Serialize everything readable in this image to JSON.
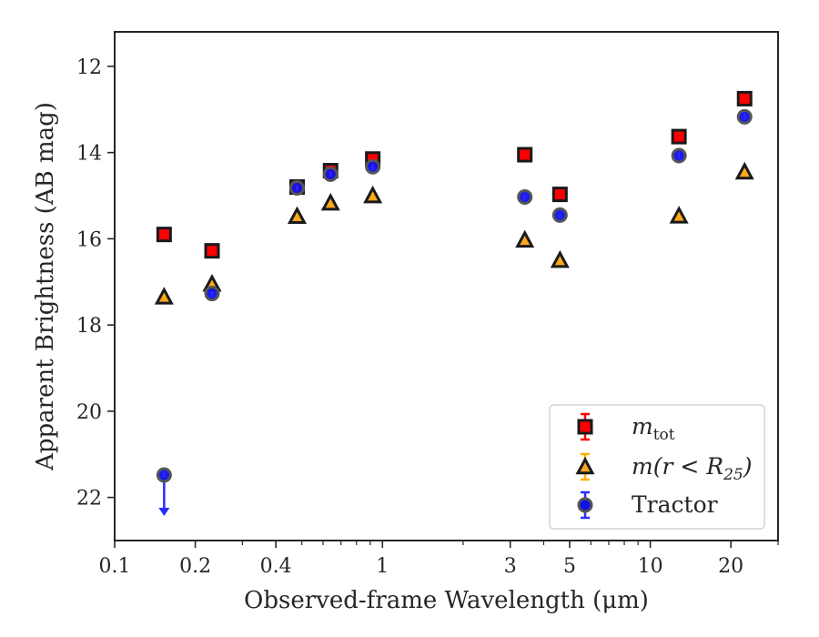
{
  "chart_data": {
    "type": "scatter",
    "title": "",
    "xlabel": "Observed-frame Wavelength (μm)",
    "ylabel": "Apparent Brightness (AB mag)",
    "xscale": "log",
    "xlim": [
      0.1,
      30
    ],
    "ylim": [
      23,
      11.2
    ],
    "y_inverted": true,
    "grid": false,
    "legend_position": "lower-right",
    "x_ticks": [
      {
        "value": 0.1,
        "label": "0.1"
      },
      {
        "value": 0.2,
        "label": "0.2"
      },
      {
        "value": 0.4,
        "label": "0.4"
      },
      {
        "value": 1,
        "label": "1"
      },
      {
        "value": 3,
        "label": "3"
      },
      {
        "value": 5,
        "label": "5"
      },
      {
        "value": 10,
        "label": "10"
      },
      {
        "value": 20,
        "label": "20"
      }
    ],
    "x_minor_ticks": [
      0.3,
      0.5,
      0.6,
      0.7,
      0.8,
      0.9,
      2,
      4,
      6,
      7,
      8,
      9,
      30
    ],
    "y_ticks": [
      {
        "value": 12,
        "label": "12"
      },
      {
        "value": 14,
        "label": "14"
      },
      {
        "value": 16,
        "label": "16"
      },
      {
        "value": 18,
        "label": "18"
      },
      {
        "value": 20,
        "label": "20"
      },
      {
        "value": 22,
        "label": "22"
      }
    ],
    "series": [
      {
        "name": "m_tot",
        "legend_main": "m",
        "legend_sub": "tot",
        "marker": "square",
        "color": "#ff0000",
        "errcolor": "#ff0000",
        "points": [
          {
            "x": 0.153,
            "y": 15.9
          },
          {
            "x": 0.231,
            "y": 16.28
          },
          {
            "x": 0.48,
            "y": 14.8
          },
          {
            "x": 0.64,
            "y": 14.42
          },
          {
            "x": 0.92,
            "y": 14.15
          },
          {
            "x": 3.4,
            "y": 14.05
          },
          {
            "x": 4.6,
            "y": 14.97
          },
          {
            "x": 12.8,
            "y": 13.63
          },
          {
            "x": 22.5,
            "y": 12.75
          }
        ]
      },
      {
        "name": "m(r < R_25)",
        "legend_main": "m(r < R",
        "legend_sub": "25",
        "legend_tail": ")",
        "marker": "triangle",
        "color": "#f5a623",
        "errcolor": "#ffb000",
        "points": [
          {
            "x": 0.153,
            "y": 17.35
          },
          {
            "x": 0.231,
            "y": 17.05
          },
          {
            "x": 0.48,
            "y": 15.48
          },
          {
            "x": 0.64,
            "y": 15.17
          },
          {
            "x": 0.92,
            "y": 15.0
          },
          {
            "x": 3.4,
            "y": 16.03
          },
          {
            "x": 4.6,
            "y": 16.5
          },
          {
            "x": 12.8,
            "y": 15.47
          },
          {
            "x": 22.5,
            "y": 14.45
          }
        ]
      },
      {
        "name": "Tractor",
        "legend_main": "Tractor",
        "marker": "circle",
        "color": "#1010ee",
        "errcolor": "#2b2bff",
        "points": [
          {
            "x": 0.153,
            "y": 21.48,
            "upper_limit": true
          },
          {
            "x": 0.231,
            "y": 17.27
          },
          {
            "x": 0.48,
            "y": 14.82
          },
          {
            "x": 0.64,
            "y": 14.5
          },
          {
            "x": 0.92,
            "y": 14.33
          },
          {
            "x": 3.4,
            "y": 15.03
          },
          {
            "x": 4.6,
            "y": 15.45
          },
          {
            "x": 12.8,
            "y": 14.07
          },
          {
            "x": 22.5,
            "y": 13.17
          }
        ]
      }
    ]
  }
}
